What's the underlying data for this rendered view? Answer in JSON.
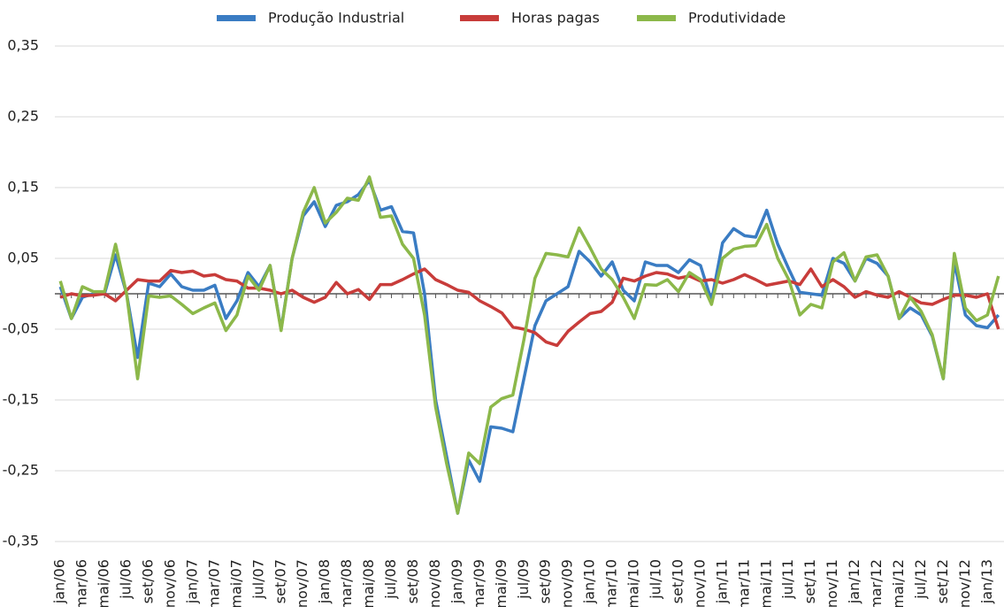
{
  "chart_data": {
    "type": "line",
    "categories": [
      "jan/06",
      null,
      "mar/06",
      null,
      "mai/06",
      null,
      "jul/06",
      null,
      "set/06",
      null,
      "nov/06",
      null,
      "jan/07",
      null,
      "mar/07",
      null,
      "mai/07",
      null,
      "jul/07",
      null,
      "set/07",
      null,
      "nov/07",
      null,
      "jan/08",
      null,
      "mar/08",
      null,
      "mai/08",
      null,
      "jul/08",
      null,
      "set/08",
      null,
      "nov/08",
      null,
      "jan/09",
      null,
      "mar/09",
      null,
      "mai/09",
      null,
      "jul/09",
      null,
      "set/09",
      null,
      "nov/09",
      null,
      "jan/10",
      null,
      "mar/10",
      null,
      "mai/10",
      null,
      "jul/10",
      null,
      "set/10",
      null,
      "nov/10",
      null,
      "jan/11",
      null,
      "mar/11",
      null,
      "mai/11",
      null,
      "jul/11",
      null,
      "set/11",
      null,
      "nov/11",
      null,
      "jan/12",
      null,
      "mar/12",
      null,
      "mai/12",
      null,
      "jul/12",
      null,
      "set/12",
      null,
      "nov/12",
      null,
      "jan/13",
      null
    ],
    "series": [
      {
        "name": "Produção Industrial",
        "color": "#3a7cc3",
        "values": [
          0.01,
          -0.035,
          -0.005,
          0.0,
          0.0,
          0.055,
          0.0,
          -0.09,
          0.015,
          0.01,
          0.028,
          0.01,
          0.005,
          0.005,
          0.012,
          -0.035,
          -0.01,
          0.03,
          0.01,
          0.04,
          -0.05,
          0.05,
          0.11,
          0.13,
          0.095,
          0.125,
          0.13,
          0.14,
          0.16,
          0.118,
          0.123,
          0.088,
          0.086,
          0.0,
          -0.15,
          -0.23,
          -0.31,
          -0.235,
          -0.265,
          -0.188,
          -0.19,
          -0.195,
          -0.12,
          -0.045,
          -0.01,
          0.0,
          0.01,
          0.06,
          0.045,
          0.025,
          0.045,
          0.005,
          -0.01,
          0.045,
          0.04,
          0.04,
          0.03,
          0.048,
          0.04,
          -0.01,
          0.072,
          0.092,
          0.082,
          0.08,
          0.118,
          0.07,
          0.035,
          0.002,
          0.0,
          -0.002,
          0.05,
          0.043,
          0.018,
          0.05,
          0.043,
          0.025,
          -0.035,
          -0.02,
          -0.03,
          -0.06,
          -0.12,
          0.045,
          -0.03,
          -0.045,
          -0.048,
          -0.03
        ]
      },
      {
        "name": "Horas pagas",
        "color": "#c83c3a",
        "values": [
          -0.005,
          0.0,
          -0.003,
          -0.002,
          0.0,
          -0.01,
          0.005,
          0.02,
          0.018,
          0.018,
          0.033,
          0.03,
          0.032,
          0.025,
          0.027,
          0.02,
          0.018,
          0.008,
          0.008,
          0.005,
          0.0,
          0.005,
          -0.005,
          -0.012,
          -0.005,
          0.016,
          0.0,
          0.006,
          -0.008,
          0.013,
          0.013,
          0.02,
          0.028,
          0.035,
          0.02,
          0.013,
          0.005,
          0.002,
          -0.01,
          -0.018,
          -0.027,
          -0.047,
          -0.05,
          -0.055,
          -0.068,
          -0.073,
          -0.053,
          -0.04,
          -0.028,
          -0.025,
          -0.012,
          0.022,
          0.018,
          0.025,
          0.03,
          0.028,
          0.022,
          0.025,
          0.018,
          0.02,
          0.015,
          0.02,
          0.027,
          0.02,
          0.012,
          0.015,
          0.018,
          0.013,
          0.035,
          0.01,
          0.02,
          0.01,
          -0.005,
          0.003,
          -0.002,
          -0.005,
          0.003,
          -0.005,
          -0.013,
          -0.015,
          -0.008,
          -0.002,
          -0.002,
          -0.005,
          0.0,
          -0.05
        ]
      },
      {
        "name": "Produtividade",
        "color": "#8cb84a",
        "values": [
          0.018,
          -0.035,
          0.01,
          0.003,
          0.003,
          0.07,
          0.0,
          -0.12,
          -0.003,
          -0.005,
          -0.003,
          -0.015,
          -0.028,
          -0.02,
          -0.013,
          -0.052,
          -0.03,
          0.025,
          0.005,
          0.04,
          -0.052,
          0.05,
          0.115,
          0.15,
          0.1,
          0.115,
          0.135,
          0.132,
          0.165,
          0.108,
          0.11,
          0.07,
          0.05,
          -0.03,
          -0.16,
          -0.24,
          -0.31,
          -0.225,
          -0.24,
          -0.16,
          -0.148,
          -0.143,
          -0.065,
          0.022,
          0.057,
          0.055,
          0.052,
          0.093,
          0.065,
          0.035,
          0.02,
          -0.005,
          -0.035,
          0.013,
          0.012,
          0.02,
          0.003,
          0.03,
          0.02,
          -0.015,
          0.05,
          0.063,
          0.067,
          0.068,
          0.098,
          0.05,
          0.02,
          -0.03,
          -0.015,
          -0.02,
          0.045,
          0.058,
          0.018,
          0.052,
          0.055,
          0.025,
          -0.035,
          -0.005,
          -0.025,
          -0.058,
          -0.12,
          0.057,
          -0.02,
          -0.038,
          -0.03,
          0.025
        ]
      }
    ],
    "ylim": [
      -0.35,
      0.35
    ],
    "yticks": [
      {
        "value": -0.35,
        "label": "-0,35"
      },
      {
        "value": -0.25,
        "label": "-0,25"
      },
      {
        "value": -0.15,
        "label": "-0,15"
      },
      {
        "value": -0.05,
        "label": "-0,05"
      },
      {
        "value": 0.05,
        "label": "0,05"
      },
      {
        "value": 0.15,
        "label": "0,15"
      },
      {
        "value": 0.25,
        "label": "0,25"
      },
      {
        "value": 0.35,
        "label": "0,35"
      }
    ],
    "grid": true,
    "legend": "top"
  }
}
